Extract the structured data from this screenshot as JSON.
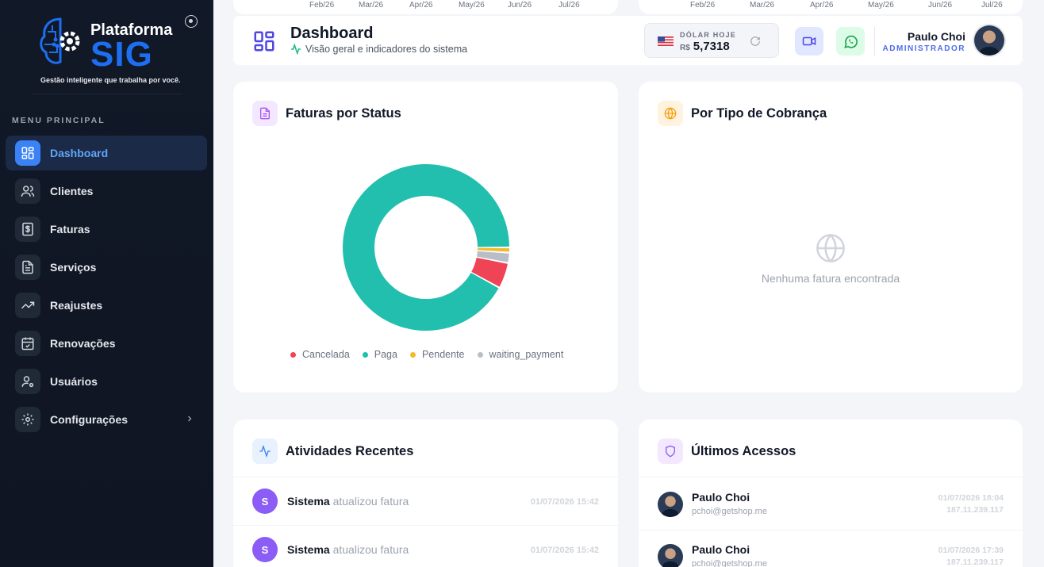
{
  "sidebar": {
    "logo": {
      "title": "Plataforma",
      "brand": "SIG",
      "tagline": "Gestão inteligente que trabalha por você."
    },
    "menu_label": "MENU PRINCIPAL",
    "items": [
      {
        "label": "Dashboard",
        "icon": "dashboard-icon",
        "active": true
      },
      {
        "label": "Clientes",
        "icon": "users-icon"
      },
      {
        "label": "Faturas",
        "icon": "invoice-icon"
      },
      {
        "label": "Serviços",
        "icon": "document-icon"
      },
      {
        "label": "Reajustes",
        "icon": "trending-up-icon"
      },
      {
        "label": "Renovações",
        "icon": "calendar-check-icon"
      },
      {
        "label": "Usuários",
        "icon": "user-settings-icon"
      },
      {
        "label": "Configurações",
        "icon": "gear-icon",
        "has_submenu": true
      }
    ]
  },
  "prev_charts": {
    "left_ticks": [
      "Feb/26",
      "Mar/26",
      "Apr/26",
      "May/26",
      "Jun/26",
      "Jul/26"
    ],
    "right_ticks": [
      "Feb/26",
      "Mar/26",
      "Apr/26",
      "May/26",
      "Jun/26",
      "Jul/26"
    ]
  },
  "header": {
    "title": "Dashboard",
    "subtitle": "Visão geral e indicadores do sistema",
    "dollar": {
      "label": "DÓLAR HOJE",
      "currency": "R$",
      "value": "5,7318"
    },
    "user": {
      "name": "Paulo Choi",
      "role": "ADMINISTRADOR"
    }
  },
  "cards": {
    "status": {
      "title": "Faturas por Status",
      "legend": [
        "Cancelada",
        "Paga",
        "Pendente",
        "waiting_payment"
      ]
    },
    "billing": {
      "title": "Por Tipo de Cobrança",
      "empty": "Nenhuma fatura encontrada"
    },
    "activities": {
      "title": "Atividades Recentes",
      "rows": [
        {
          "initial": "S",
          "who": "Sistema",
          "action": "atualizou fatura",
          "time": "01/07/2026 15:42"
        },
        {
          "initial": "S",
          "who": "Sistema",
          "action": "atualizou fatura",
          "time": "01/07/2026 15:42"
        }
      ]
    },
    "access": {
      "title": "Últimos Acessos",
      "rows": [
        {
          "name": "Paulo Choi",
          "email": "pchoi@getshop.me",
          "time": "01/07/2026 18:04",
          "ip": "187.11.239.117"
        },
        {
          "name": "Paulo Choi",
          "email": "pchoi@getshop.me",
          "time": "01/07/2026 17:39",
          "ip": "187.11.239.117"
        }
      ]
    }
  },
  "chart_data": {
    "type": "pie",
    "categories": [
      "Cancelada",
      "Paga",
      "Pendente",
      "waiting_payment"
    ],
    "values": [
      5,
      92,
      1,
      2
    ],
    "colors": [
      "#ef4455",
      "#22bfae",
      "#f5b82e",
      "#b8bec8"
    ],
    "legend_position": "bottom"
  }
}
